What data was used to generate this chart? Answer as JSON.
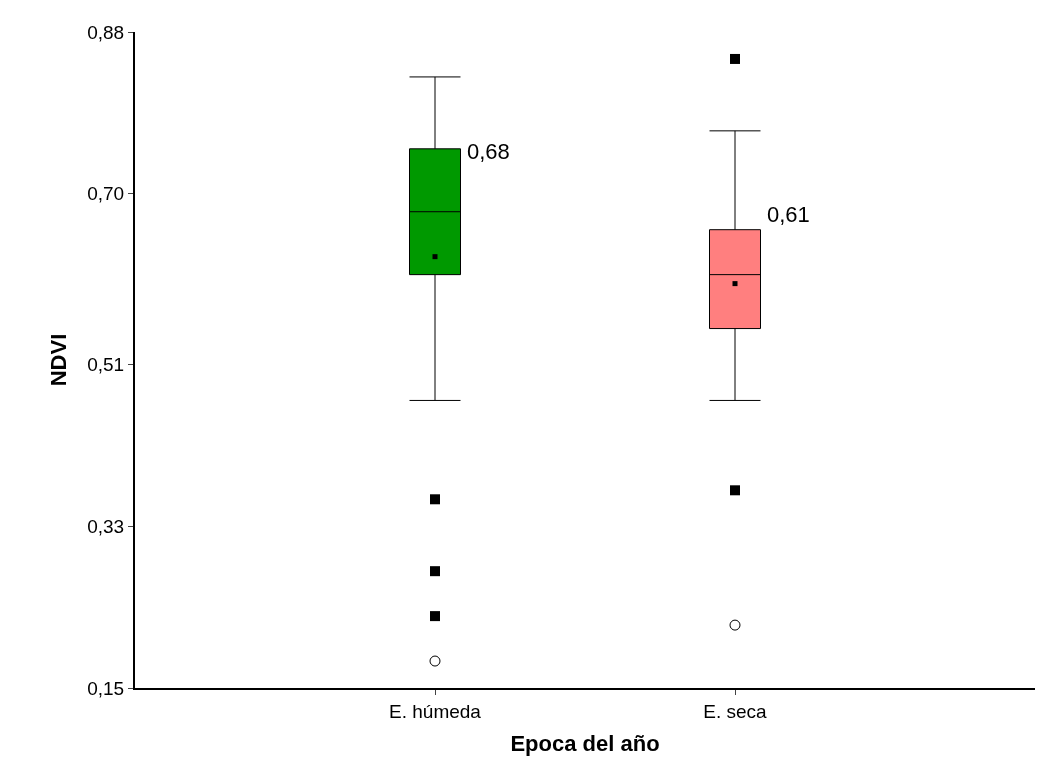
{
  "chart_data": {
    "type": "box",
    "xlabel": "Epoca del año",
    "ylabel": "NDVI",
    "categories": [
      "E. húmeda",
      "E. seca"
    ],
    "colors": [
      "#009900",
      "#ff7f7f"
    ],
    "boxes": [
      {
        "low": 0.47,
        "q1": 0.61,
        "median": 0.68,
        "q3": 0.75,
        "high": 0.83,
        "mean": 0.63,
        "outliers": [
          0.36,
          0.28,
          0.23
        ]
      },
      {
        "low": 0.47,
        "q1": 0.55,
        "median": 0.61,
        "q3": 0.66,
        "high": 0.77,
        "mean": 0.6,
        "outliers": [
          0.85,
          0.37
        ]
      }
    ],
    "series": [
      {
        "type": "scatter",
        "marker": "circle",
        "color": "#ffffff",
        "x": [
          "E. húmeda",
          "E. seca"
        ],
        "values": [
          0.18,
          0.22
        ]
      }
    ],
    "annotations": [
      {
        "text": "0,68",
        "x": "E. húmeda",
        "y": 0.68
      },
      {
        "text": "0,61",
        "x": "E. seca",
        "y": 0.61
      }
    ],
    "ylim": [
      0.15,
      0.88
    ],
    "yticks": [
      {
        "value": 0.15,
        "label": "0,15"
      },
      {
        "value": 0.33,
        "label": "0,33"
      },
      {
        "value": 0.51,
        "label": "0,51"
      },
      {
        "value": 0.7,
        "label": "0,70"
      },
      {
        "value": 0.88,
        "label": "0,88"
      }
    ]
  }
}
